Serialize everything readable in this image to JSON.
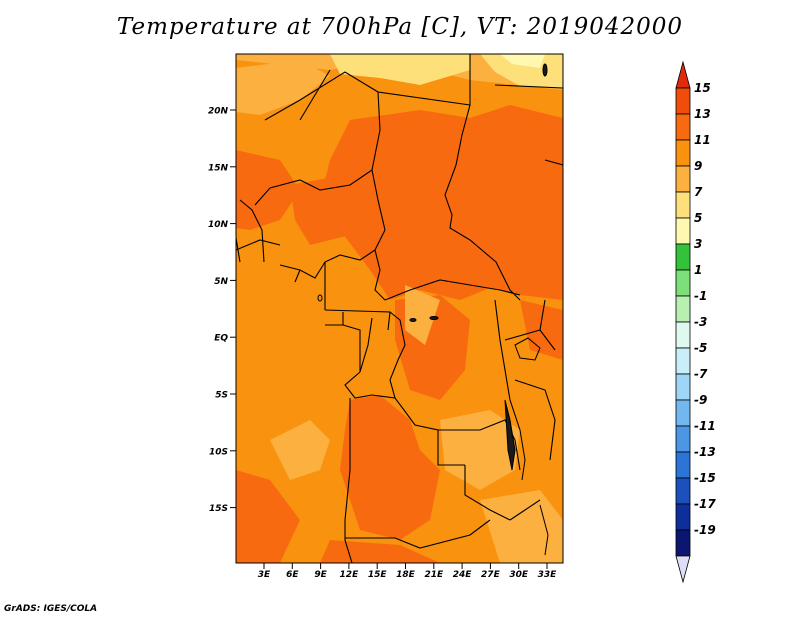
{
  "title": "Temperature at 700hPa [C], VT: 2019042000",
  "footer": "GrADS: IGES/COLA",
  "map": {
    "lat_labels": [
      "20N",
      "15N",
      "10N",
      "5N",
      "EQ",
      "5S",
      "10S",
      "15S"
    ],
    "lon_labels": [
      "3E",
      "6E",
      "9E",
      "12E",
      "15E",
      "18E",
      "21E",
      "24E",
      "27E",
      "30E",
      "33E"
    ]
  },
  "colorbar": {
    "labels": [
      "15",
      "13",
      "11",
      "9",
      "7",
      "5",
      "3",
      "1",
      "-1",
      "-3",
      "-5",
      "-7",
      "-9",
      "-11",
      "-13",
      "-15",
      "-17",
      "-19"
    ],
    "colors": [
      "#e12a0c",
      "#f04c0a",
      "#f86a10",
      "#f9920e",
      "#fbb040",
      "#fde07a",
      "#fff8b0",
      "#33c23a",
      "#7ddf7a",
      "#b7f0b0",
      "#e0f8f0",
      "#c8eefa",
      "#9ed6f5",
      "#73b7ef",
      "#4d96e4",
      "#2d74d7",
      "#1b50bd",
      "#0d2f9c",
      "#0a1670",
      "#dedef7"
    ]
  }
}
